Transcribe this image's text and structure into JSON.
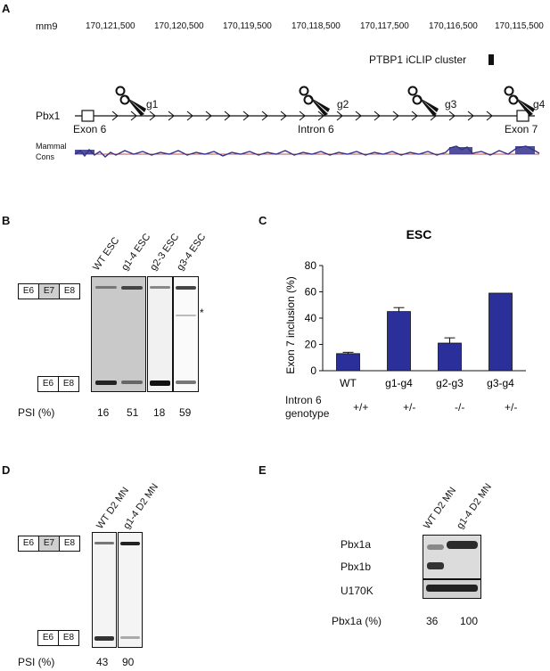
{
  "panelA": {
    "letter": "A",
    "genome": "mm9",
    "coords": [
      "170,121,500",
      "170,120,500",
      "170,119,500",
      "170,118,500",
      "170,117,500",
      "170,116,500",
      "170,115,500"
    ],
    "cluster_label": "PTBP1 iCLIP cluster",
    "gene": "Pbx1",
    "guides": [
      "g1",
      "g2",
      "g3",
      "g4"
    ],
    "features": [
      "Exon 6",
      "Intron 6",
      "Exon 7"
    ],
    "cons_label": [
      "Mammal",
      "Cons"
    ]
  },
  "panelB": {
    "letter": "B",
    "lanes": [
      "WT ESC",
      "g1-4 ESC",
      "g2-3 ESC",
      "g3-4 ESC"
    ],
    "upper_boxes": [
      "E6",
      "E7",
      "E8"
    ],
    "lower_boxes": [
      "E6",
      "E8"
    ],
    "psi_label": "PSI (%)",
    "psi_values": [
      "16",
      "51",
      "18",
      "59"
    ],
    "asterisk": "*"
  },
  "panelC": {
    "letter": "C",
    "chart_data": {
      "type": "bar",
      "title": "ESC",
      "ylabel": "Exon 7 inclusion (%)",
      "categories": [
        "WT",
        "g1-g4",
        "g2-g3",
        "g3-g4"
      ],
      "values": [
        13,
        45,
        21,
        59
      ],
      "errors": [
        1,
        3,
        4,
        0
      ],
      "ylim": [
        0,
        80
      ],
      "yticks": [
        0,
        20,
        40,
        60,
        80
      ],
      "bar_color": "#2a2f9a",
      "row_label": [
        "Intron 6",
        "genotype"
      ],
      "genotypes": [
        "+/+",
        "+/-",
        "-/-",
        "+/-"
      ]
    }
  },
  "panelD": {
    "letter": "D",
    "lanes": [
      "WT D2 MN",
      "g1-4 D2 MN"
    ],
    "upper_boxes": [
      "E6",
      "E7",
      "E8"
    ],
    "lower_boxes": [
      "E6",
      "E8"
    ],
    "psi_label": "PSI (%)",
    "psi_values": [
      "43",
      "90"
    ]
  },
  "panelE": {
    "letter": "E",
    "lanes": [
      "WT D2 MN",
      "g1-4 D2 MN"
    ],
    "blot_labels": [
      "Pbx1a",
      "Pbx1b",
      "U170K"
    ],
    "quant_label": "Pbx1a (%)",
    "quant_values": [
      "36",
      "100"
    ]
  },
  "colors": {
    "bar": "#2a2f9a",
    "cons_blue": "#33338a",
    "cons_red": "#c0504d"
  }
}
